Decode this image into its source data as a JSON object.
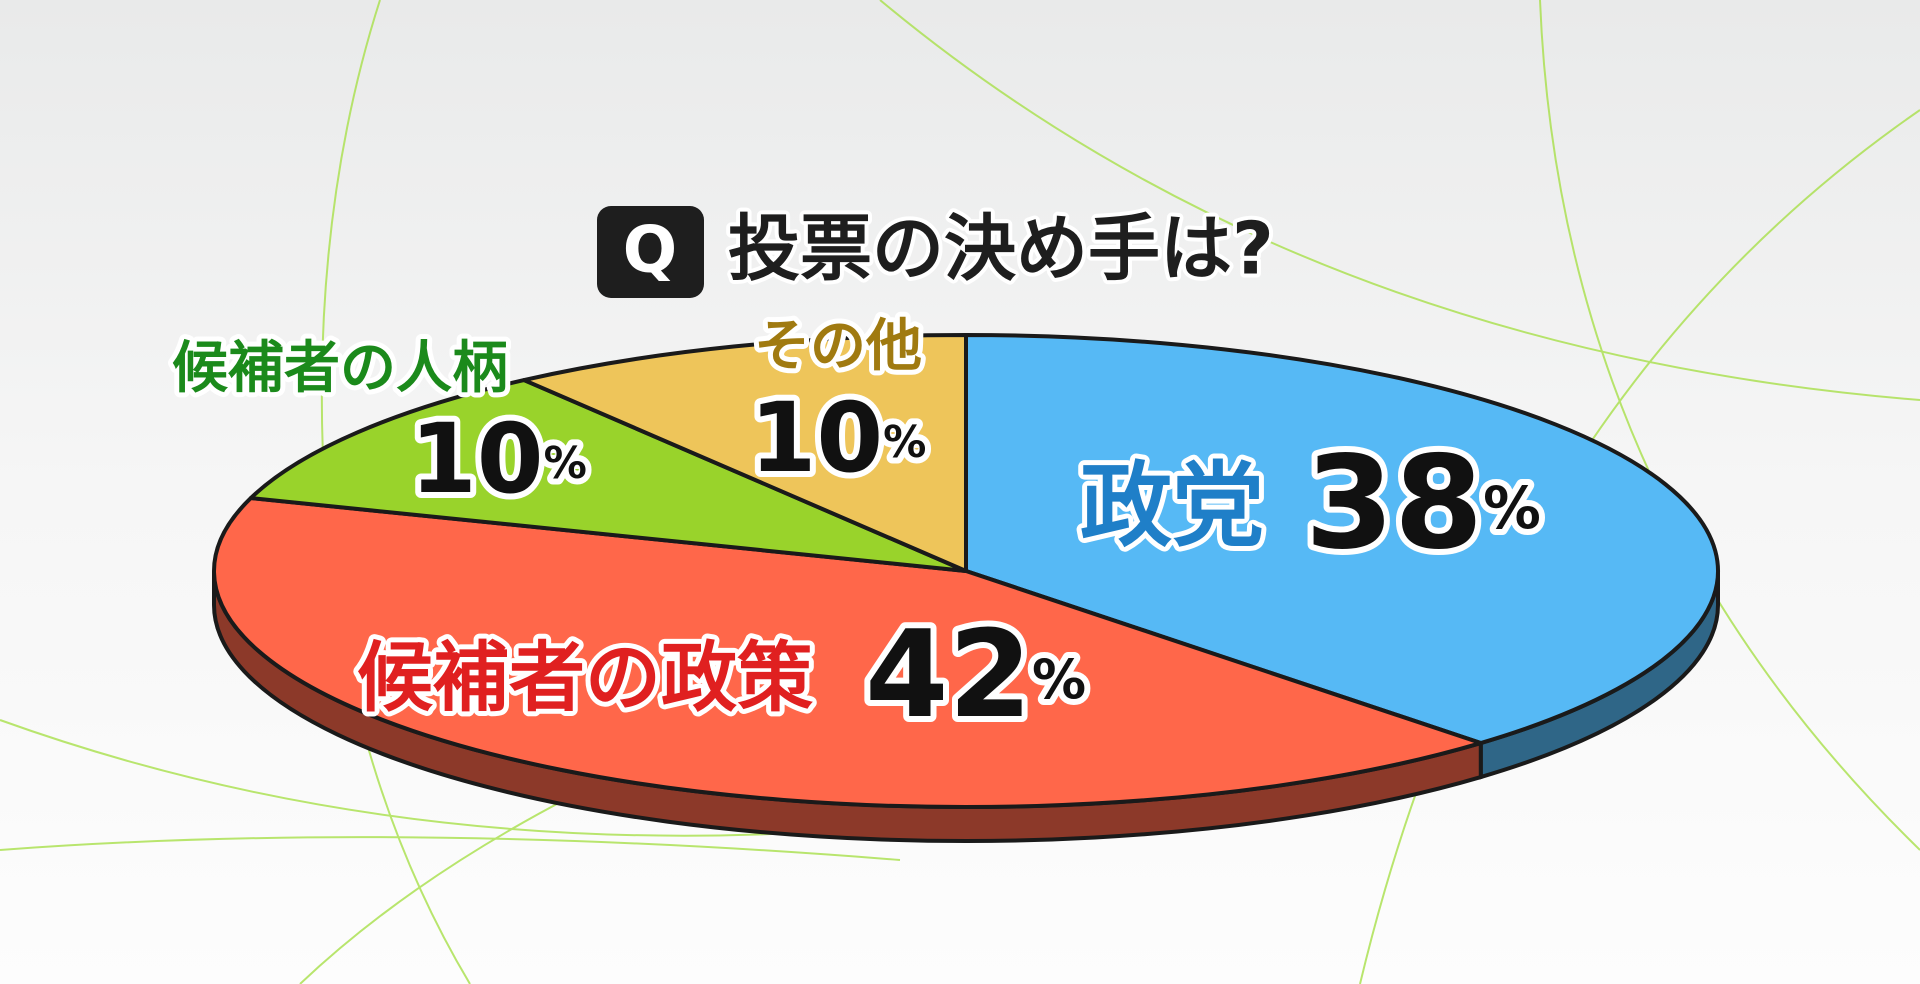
{
  "chart_data": {
    "type": "pie",
    "question_badge": "Q",
    "title": "投票の決め手は?",
    "categories": [
      "政党",
      "候補者の政策",
      "候補者の人柄",
      "その他"
    ],
    "values": [
      38,
      42,
      10,
      10
    ],
    "unit": "%",
    "colors": [
      "#56b9f5",
      "#ff674a",
      "#99d32b",
      "#eec55a"
    ],
    "label_colors": [
      "#1f7fc8",
      "#e02020",
      "#1b8a1b",
      "#a07a10"
    ]
  }
}
